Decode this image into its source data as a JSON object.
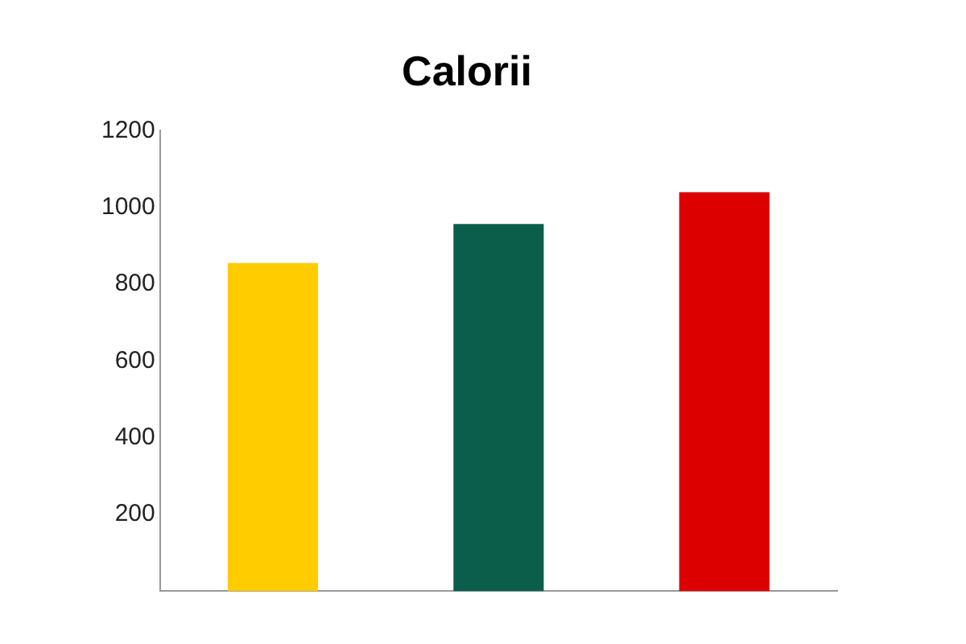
{
  "chart_data": {
    "type": "bar",
    "title": "Calorii",
    "categories": [
      null,
      null,
      null
    ],
    "values": [
      855,
      957,
      1040
    ],
    "colors": [
      "#ffcc00",
      "#0b5e4a",
      "#dd0000"
    ],
    "ylim": [
      0,
      1200
    ],
    "yticks": [
      200,
      400,
      600,
      800,
      1000,
      1200
    ],
    "grid": false,
    "legend": false
  }
}
